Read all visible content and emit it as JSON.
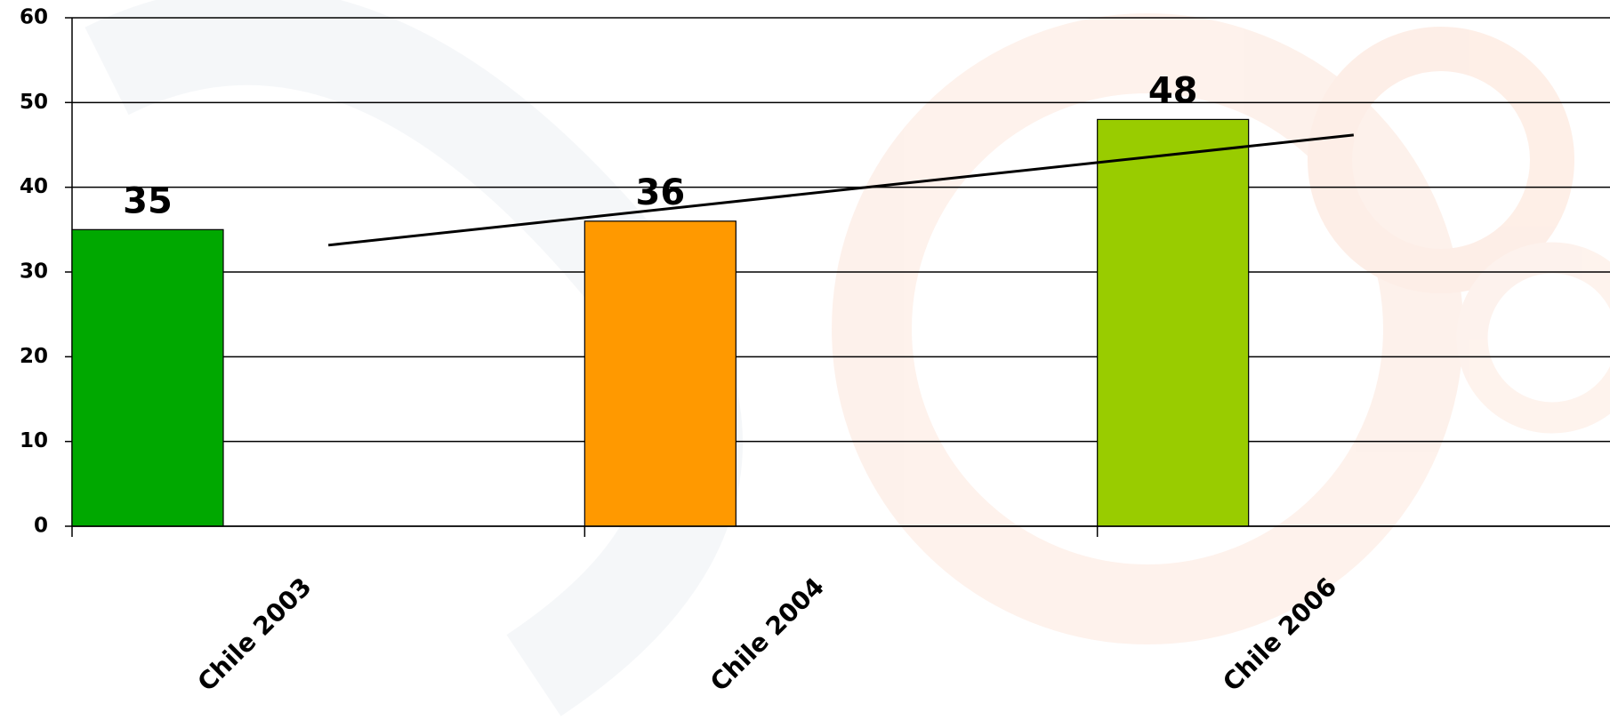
{
  "chart_data": {
    "type": "bar",
    "categories": [
      "Chile 2003",
      "Chile 2004",
      "Chile 2006"
    ],
    "values": [
      35,
      36,
      48
    ],
    "colors": [
      "#00a800",
      "#ff9900",
      "#99cc00"
    ],
    "ylim": [
      0,
      60
    ],
    "yticks": [
      0,
      10,
      20,
      30,
      40,
      50,
      60
    ],
    "grid": true,
    "trendline": true
  }
}
